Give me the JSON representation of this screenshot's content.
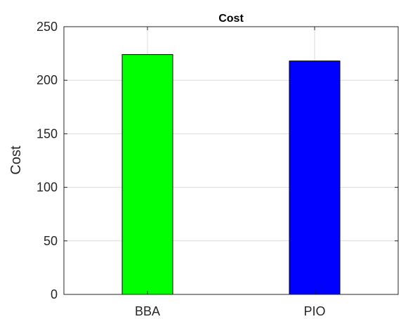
{
  "chart_data": {
    "type": "bar",
    "title": "Cost",
    "xlabel": "",
    "ylabel": "Cost",
    "categories": [
      "BBA",
      "PIO"
    ],
    "values": [
      224,
      218
    ],
    "bar_colors": [
      "#00ff00",
      "#0000ff"
    ],
    "ylim": [
      0,
      250
    ],
    "yticks": [
      "0",
      "50",
      "100",
      "150",
      "200",
      "250"
    ],
    "grid": true
  }
}
